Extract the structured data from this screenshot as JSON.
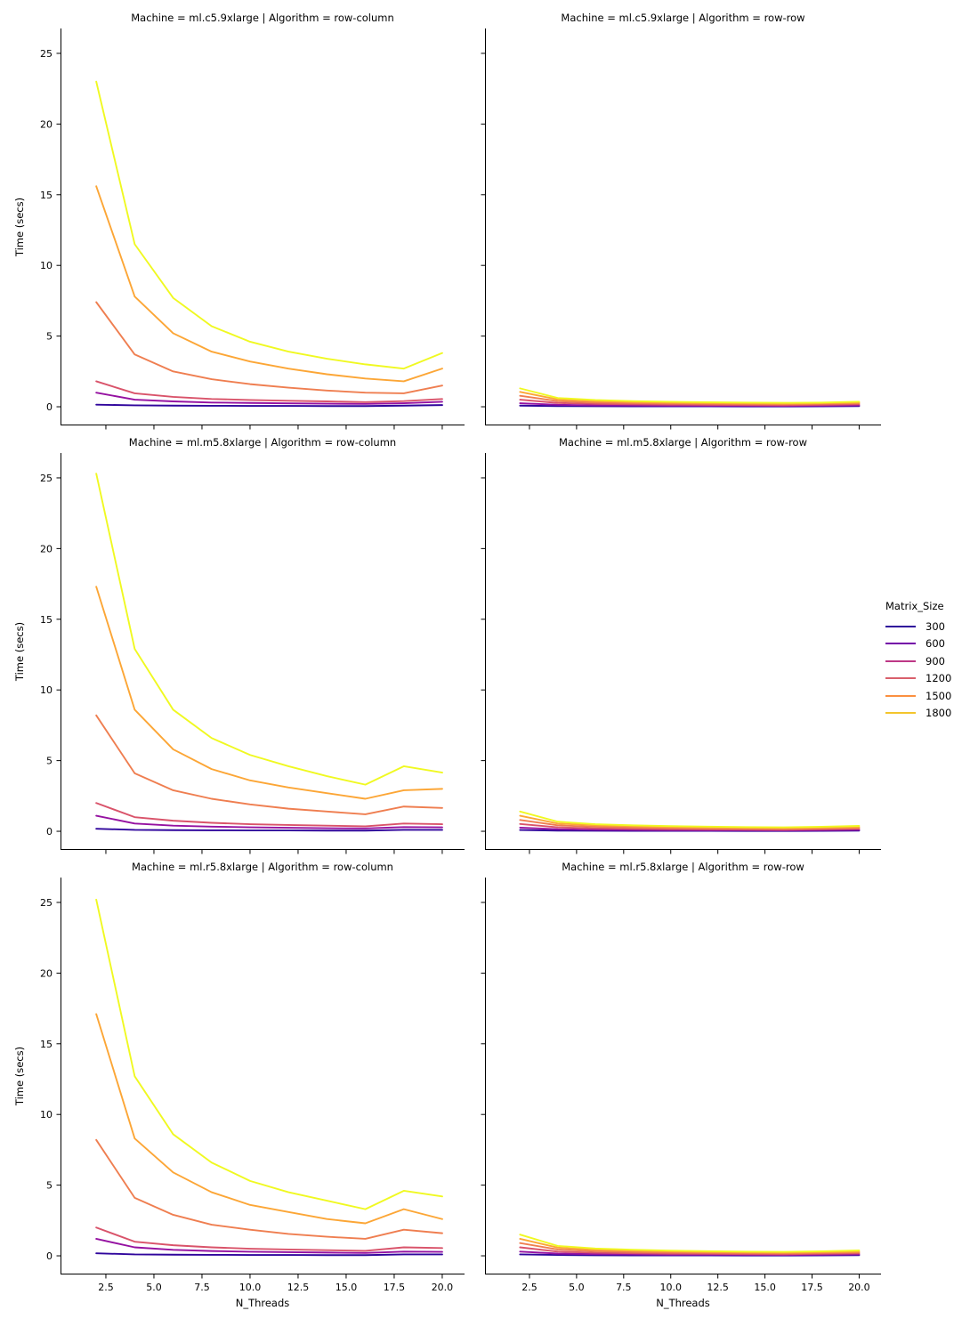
{
  "figure": {
    "background": "#ffffff",
    "rows": [
      "ml.c5.9xlarge",
      "ml.m5.8xlarge",
      "ml.r5.8xlarge"
    ],
    "cols": [
      "row-column",
      "row-row"
    ]
  },
  "axes": {
    "xlabel": "N_Threads",
    "ylabel": "Time (secs)",
    "x_tick_labels": [
      "2.5",
      "5.0",
      "7.5",
      "10.0",
      "12.5",
      "15.0",
      "17.5",
      "20.0"
    ],
    "x_tick_values": [
      2.5,
      5.0,
      7.5,
      10.0,
      12.5,
      15.0,
      17.5,
      20.0
    ],
    "y_tick_labels": [
      "0",
      "5",
      "10",
      "15",
      "20",
      "25"
    ],
    "y_tick_values": [
      0,
      5,
      10,
      15,
      20,
      25
    ],
    "xlim": [
      0.14,
      21.16
    ],
    "ylim": [
      -1.32,
      26.76
    ],
    "grid": false,
    "spine_color": "#000000"
  },
  "legend": {
    "title": "Matrix_Size",
    "position": "right-middle",
    "entries": [
      {
        "label": "300",
        "color": "#2f0a9b"
      },
      {
        "label": "600",
        "color": "#7401a8"
      },
      {
        "label": "900",
        "color": "#bd3786"
      },
      {
        "label": "1200",
        "color": "#d9606c"
      },
      {
        "label": "1500",
        "color": "#fb9040"
      },
      {
        "label": "1800",
        "color": "#f3c52c"
      }
    ]
  },
  "chart_data": [
    {
      "type": "line",
      "machine": "ml.c5.9xlarge",
      "algorithm": "row-column",
      "title": "Machine = ml.c5.9xlarge | Algorithm = row-column",
      "x": [
        2,
        4,
        6,
        8,
        10,
        12,
        14,
        16,
        18,
        20
      ],
      "series": [
        {
          "name": "300",
          "color": "#2f059c",
          "values": [
            0.15,
            0.1,
            0.08,
            0.07,
            0.06,
            0.06,
            0.05,
            0.05,
            0.08,
            0.12
          ]
        },
        {
          "name": "600",
          "color": "#9511a1",
          "values": [
            1.0,
            0.5,
            0.38,
            0.3,
            0.27,
            0.24,
            0.22,
            0.2,
            0.25,
            0.35
          ]
        },
        {
          "name": "900",
          "color": "#d9536a",
          "values": [
            1.8,
            0.95,
            0.7,
            0.55,
            0.48,
            0.42,
            0.38,
            0.33,
            0.4,
            0.55
          ]
        },
        {
          "name": "1200",
          "color": "#ef7e50",
          "values": [
            7.4,
            3.7,
            2.5,
            1.95,
            1.6,
            1.35,
            1.15,
            1.0,
            0.95,
            1.5
          ]
        },
        {
          "name": "1500",
          "color": "#fca636",
          "values": [
            15.6,
            7.8,
            5.2,
            3.9,
            3.2,
            2.7,
            2.3,
            2.0,
            1.8,
            2.7
          ]
        },
        {
          "name": "1800",
          "color": "#f0f921",
          "values": [
            23.0,
            11.5,
            7.7,
            5.7,
            4.6,
            3.9,
            3.4,
            3.0,
            2.7,
            3.8
          ]
        }
      ]
    },
    {
      "type": "line",
      "machine": "ml.c5.9xlarge",
      "algorithm": "row-row",
      "title": "Machine = ml.c5.9xlarge | Algorithm = row-row",
      "x": [
        2,
        4,
        6,
        8,
        10,
        12,
        14,
        16,
        18,
        20
      ],
      "series": [
        {
          "name": "300",
          "color": "#2f059c",
          "values": [
            0.08,
            0.05,
            0.04,
            0.03,
            0.03,
            0.03,
            0.02,
            0.02,
            0.03,
            0.05
          ]
        },
        {
          "name": "600",
          "color": "#9511a1",
          "values": [
            0.25,
            0.14,
            0.1,
            0.09,
            0.08,
            0.07,
            0.07,
            0.06,
            0.08,
            0.1
          ]
        },
        {
          "name": "900",
          "color": "#d9536a",
          "values": [
            0.5,
            0.27,
            0.2,
            0.17,
            0.15,
            0.13,
            0.12,
            0.11,
            0.13,
            0.17
          ]
        },
        {
          "name": "1200",
          "color": "#ef7e50",
          "values": [
            0.78,
            0.4,
            0.3,
            0.26,
            0.22,
            0.2,
            0.18,
            0.17,
            0.2,
            0.24
          ]
        },
        {
          "name": "1500",
          "color": "#fca636",
          "values": [
            1.05,
            0.52,
            0.4,
            0.33,
            0.29,
            0.26,
            0.24,
            0.22,
            0.25,
            0.3
          ]
        },
        {
          "name": "1800",
          "color": "#f0f921",
          "values": [
            1.3,
            0.62,
            0.48,
            0.4,
            0.35,
            0.32,
            0.3,
            0.28,
            0.3,
            0.36
          ]
        }
      ]
    },
    {
      "type": "line",
      "machine": "ml.m5.8xlarge",
      "algorithm": "row-column",
      "title": "Machine = ml.m5.8xlarge | Algorithm = row-column",
      "x": [
        2,
        4,
        6,
        8,
        10,
        12,
        14,
        16,
        18,
        20
      ],
      "series": [
        {
          "name": "300",
          "color": "#2f059c",
          "values": [
            0.18,
            0.1,
            0.08,
            0.07,
            0.06,
            0.06,
            0.05,
            0.05,
            0.1,
            0.1
          ]
        },
        {
          "name": "600",
          "color": "#9511a1",
          "values": [
            1.1,
            0.55,
            0.4,
            0.33,
            0.28,
            0.25,
            0.22,
            0.2,
            0.3,
            0.28
          ]
        },
        {
          "name": "900",
          "color": "#d9536a",
          "values": [
            2.0,
            1.0,
            0.75,
            0.6,
            0.5,
            0.45,
            0.4,
            0.35,
            0.55,
            0.5
          ]
        },
        {
          "name": "1200",
          "color": "#ef7e50",
          "values": [
            8.2,
            4.1,
            2.9,
            2.3,
            1.9,
            1.6,
            1.4,
            1.2,
            1.75,
            1.65
          ]
        },
        {
          "name": "1500",
          "color": "#fca636",
          "values": [
            17.3,
            8.6,
            5.8,
            4.4,
            3.6,
            3.1,
            2.7,
            2.3,
            2.9,
            3.0
          ]
        },
        {
          "name": "1800",
          "color": "#f0f921",
          "values": [
            25.3,
            12.9,
            8.6,
            6.6,
            5.4,
            4.6,
            3.9,
            3.3,
            4.6,
            4.15
          ]
        }
      ]
    },
    {
      "type": "line",
      "machine": "ml.m5.8xlarge",
      "algorithm": "row-row",
      "title": "Machine = ml.m5.8xlarge | Algorithm = row-row",
      "x": [
        2,
        4,
        6,
        8,
        10,
        12,
        14,
        16,
        18,
        20
      ],
      "series": [
        {
          "name": "300",
          "color": "#2f059c",
          "values": [
            0.09,
            0.05,
            0.04,
            0.03,
            0.03,
            0.03,
            0.02,
            0.02,
            0.03,
            0.05
          ]
        },
        {
          "name": "600",
          "color": "#9511a1",
          "values": [
            0.26,
            0.15,
            0.11,
            0.09,
            0.08,
            0.07,
            0.07,
            0.06,
            0.08,
            0.1
          ]
        },
        {
          "name": "900",
          "color": "#d9536a",
          "values": [
            0.52,
            0.28,
            0.21,
            0.17,
            0.15,
            0.13,
            0.12,
            0.11,
            0.14,
            0.17
          ]
        },
        {
          "name": "1200",
          "color": "#ef7e50",
          "values": [
            0.8,
            0.42,
            0.32,
            0.27,
            0.23,
            0.2,
            0.19,
            0.17,
            0.2,
            0.24
          ]
        },
        {
          "name": "1500",
          "color": "#fca636",
          "values": [
            1.1,
            0.55,
            0.42,
            0.35,
            0.3,
            0.27,
            0.25,
            0.23,
            0.26,
            0.3
          ]
        },
        {
          "name": "1800",
          "color": "#f0f921",
          "values": [
            1.4,
            0.68,
            0.5,
            0.42,
            0.37,
            0.33,
            0.3,
            0.28,
            0.32,
            0.38
          ]
        }
      ]
    },
    {
      "type": "line",
      "machine": "ml.r5.8xlarge",
      "algorithm": "row-column",
      "title": "Machine = ml.r5.8xlarge | Algorithm = row-column",
      "x": [
        2,
        4,
        6,
        8,
        10,
        12,
        14,
        16,
        18,
        20
      ],
      "series": [
        {
          "name": "300",
          "color": "#2f059c",
          "values": [
            0.18,
            0.1,
            0.08,
            0.07,
            0.06,
            0.06,
            0.05,
            0.05,
            0.1,
            0.1
          ]
        },
        {
          "name": "600",
          "color": "#9511a1",
          "values": [
            1.2,
            0.6,
            0.42,
            0.34,
            0.29,
            0.26,
            0.23,
            0.2,
            0.3,
            0.28
          ]
        },
        {
          "name": "900",
          "color": "#d9536a",
          "values": [
            2.0,
            1.0,
            0.75,
            0.6,
            0.5,
            0.45,
            0.4,
            0.35,
            0.6,
            0.55
          ]
        },
        {
          "name": "1200",
          "color": "#ef7e50",
          "values": [
            8.2,
            4.1,
            2.9,
            2.2,
            1.85,
            1.55,
            1.35,
            1.2,
            1.85,
            1.6
          ]
        },
        {
          "name": "1500",
          "color": "#fca636",
          "values": [
            17.1,
            8.3,
            5.9,
            4.5,
            3.6,
            3.1,
            2.6,
            2.3,
            3.3,
            2.6
          ]
        },
        {
          "name": "1800",
          "color": "#f0f921",
          "values": [
            25.2,
            12.7,
            8.6,
            6.6,
            5.3,
            4.5,
            3.9,
            3.3,
            4.6,
            4.2
          ]
        }
      ]
    },
    {
      "type": "line",
      "machine": "ml.r5.8xlarge",
      "algorithm": "row-row",
      "title": "Machine = ml.r5.8xlarge | Algorithm = row-row",
      "x": [
        2,
        4,
        6,
        8,
        10,
        12,
        14,
        16,
        18,
        20
      ],
      "series": [
        {
          "name": "300",
          "color": "#2f059c",
          "values": [
            0.1,
            0.06,
            0.04,
            0.03,
            0.03,
            0.03,
            0.02,
            0.02,
            0.03,
            0.05
          ]
        },
        {
          "name": "600",
          "color": "#9511a1",
          "values": [
            0.3,
            0.16,
            0.12,
            0.1,
            0.08,
            0.08,
            0.07,
            0.06,
            0.08,
            0.1
          ]
        },
        {
          "name": "900",
          "color": "#d9536a",
          "values": [
            0.6,
            0.3,
            0.22,
            0.18,
            0.15,
            0.14,
            0.12,
            0.11,
            0.14,
            0.17
          ]
        },
        {
          "name": "1200",
          "color": "#ef7e50",
          "values": [
            0.9,
            0.45,
            0.33,
            0.27,
            0.23,
            0.21,
            0.19,
            0.17,
            0.2,
            0.24
          ]
        },
        {
          "name": "1500",
          "color": "#fca636",
          "values": [
            1.2,
            0.58,
            0.43,
            0.36,
            0.31,
            0.27,
            0.25,
            0.23,
            0.26,
            0.3
          ]
        },
        {
          "name": "1800",
          "color": "#f0f921",
          "values": [
            1.5,
            0.7,
            0.52,
            0.43,
            0.37,
            0.33,
            0.3,
            0.28,
            0.32,
            0.38
          ]
        }
      ]
    }
  ]
}
